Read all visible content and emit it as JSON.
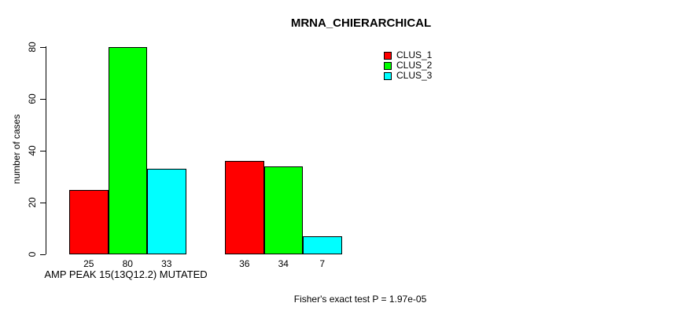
{
  "chart_data": {
    "type": "bar",
    "title": "MRNA_CHIERARCHICAL",
    "ylabel": "number of cases",
    "xlabel": "AMP PEAK 15(13Q12.2) MUTATED",
    "ylim": [
      0,
      80
    ],
    "yticks": [
      0,
      20,
      40,
      60,
      80
    ],
    "grid": false,
    "legend_position": "top-right",
    "categories": [
      "AMP PEAK 15(13Q12.2) MUTATED",
      ""
    ],
    "series": [
      {
        "name": "CLUS_1",
        "color": "#FF0000",
        "values": [
          25,
          36
        ]
      },
      {
        "name": "CLUS_2",
        "color": "#00FF00",
        "values": [
          80,
          34
        ]
      },
      {
        "name": "CLUS_3",
        "color": "#00FFFF",
        "values": [
          33,
          7
        ]
      }
    ],
    "bar_value_labels": [
      [
        25,
        80,
        33
      ],
      [
        36,
        34,
        7
      ]
    ],
    "annotation": "Fisher's exact test P = 1.97e-05",
    "colors": {
      "background": "#FFFFFF",
      "axis": "#000000",
      "text": "#000000"
    }
  }
}
